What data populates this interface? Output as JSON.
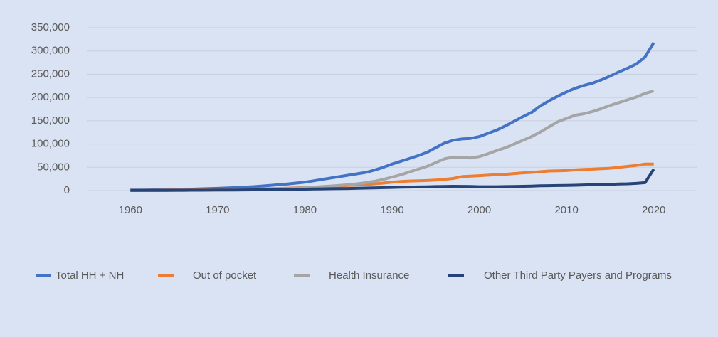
{
  "chart_data": {
    "type": "line",
    "x": [
      1960,
      1961,
      1962,
      1963,
      1964,
      1965,
      1966,
      1967,
      1968,
      1969,
      1970,
      1971,
      1972,
      1973,
      1974,
      1975,
      1976,
      1977,
      1978,
      1979,
      1980,
      1981,
      1982,
      1983,
      1984,
      1985,
      1986,
      1987,
      1988,
      1989,
      1990,
      1991,
      1992,
      1993,
      1994,
      1995,
      1996,
      1997,
      1998,
      1999,
      2000,
      2001,
      2002,
      2003,
      2004,
      2005,
      2006,
      2007,
      2008,
      2009,
      2010,
      2011,
      2012,
      2013,
      2014,
      2015,
      2016,
      2017,
      2018,
      2019,
      2020
    ],
    "xlim": [
      1955,
      2025
    ],
    "xticks": [
      1960,
      1970,
      1980,
      1990,
      2000,
      2010,
      2020
    ],
    "ylim": [
      0,
      350000
    ],
    "yticks": [
      0,
      {
        "value": 50000,
        "label": "50,000"
      },
      {
        "value": 100000,
        "label": "100,000"
      },
      {
        "value": 150000,
        "label": "150,000"
      },
      {
        "value": 200000,
        "label": "200,000"
      },
      {
        "value": 250000,
        "label": "250,000"
      },
      {
        "value": 300000,
        "label": "300,000"
      },
      {
        "value": 350000,
        "label": "350,000"
      }
    ],
    "grid": true,
    "legend": "bottom",
    "series": [
      {
        "name": "Total HH + NH",
        "color": "#4472c4",
        "values": [
          1000,
          1200,
          1400,
          1700,
          2000,
          2300,
          2700,
          3100,
          3600,
          4200,
          4800,
          5500,
          6300,
          7200,
          8300,
          9500,
          11000,
          12500,
          14000,
          16000,
          18000,
          21000,
          24000,
          27000,
          30000,
          33000,
          36000,
          39000,
          44000,
          50000,
          57000,
          63000,
          69000,
          75000,
          82000,
          92000,
          102000,
          108000,
          111000,
          112000,
          116000,
          123000,
          130000,
          139000,
          149000,
          159000,
          168000,
          182000,
          193000,
          203000,
          212000,
          220000,
          226000,
          231000,
          238000,
          246000,
          255000,
          263000,
          272000,
          287000,
          318000
        ]
      },
      {
        "name": "Out of pocket",
        "color": "#ed7d31",
        "values": [
          500,
          600,
          700,
          800,
          900,
          1000,
          1100,
          1200,
          1400,
          1600,
          1800,
          2000,
          2300,
          2600,
          3000,
          3400,
          3900,
          4400,
          5000,
          5700,
          6500,
          7200,
          8000,
          9000,
          10000,
          11000,
          12000,
          13000,
          14500,
          16000,
          18000,
          19500,
          20500,
          21000,
          21500,
          22500,
          24000,
          26000,
          30000,
          31000,
          32000,
          33000,
          34000,
          35000,
          36500,
          38000,
          39000,
          40500,
          42000,
          42500,
          43000,
          44500,
          45500,
          46000,
          47000,
          48000,
          50000,
          52000,
          54000,
          57000,
          57000
        ]
      },
      {
        "name": "Health Insurance",
        "color": "#a5a5a5",
        "values": [
          200,
          250,
          300,
          350,
          400,
          500,
          600,
          700,
          800,
          900,
          1000,
          1200,
          1500,
          1800,
          2100,
          2500,
          3000,
          3600,
          4300,
          5200,
          6200,
          7300,
          8500,
          9800,
          11000,
          12500,
          14500,
          17000,
          20000,
          24000,
          29000,
          34000,
          40000,
          46000,
          52000,
          60000,
          68000,
          72000,
          71000,
          70000,
          73000,
          79000,
          86000,
          92000,
          100000,
          108000,
          116000,
          126000,
          137000,
          148000,
          155000,
          162000,
          165000,
          170000,
          176000,
          183000,
          189000,
          195000,
          201000,
          209000,
          214000
        ]
      },
      {
        "name": "Other Third Party Payers and Programs",
        "color": "#264478",
        "values": [
          300,
          350,
          400,
          450,
          500,
          550,
          600,
          700,
          800,
          900,
          1000,
          1100,
          1200,
          1300,
          1500,
          1700,
          1900,
          2100,
          2400,
          2700,
          3000,
          3300,
          3600,
          3900,
          4200,
          4500,
          4900,
          5300,
          5700,
          6200,
          6800,
          7200,
          7500,
          7800,
          8100,
          8500,
          8900,
          9200,
          9000,
          8700,
          8300,
          8200,
          8300,
          8500,
          8800,
          9200,
          9600,
          10200,
          10500,
          10800,
          11000,
          11500,
          12000,
          12500,
          13000,
          13500,
          14000,
          14500,
          15500,
          17000,
          46000
        ]
      }
    ]
  }
}
